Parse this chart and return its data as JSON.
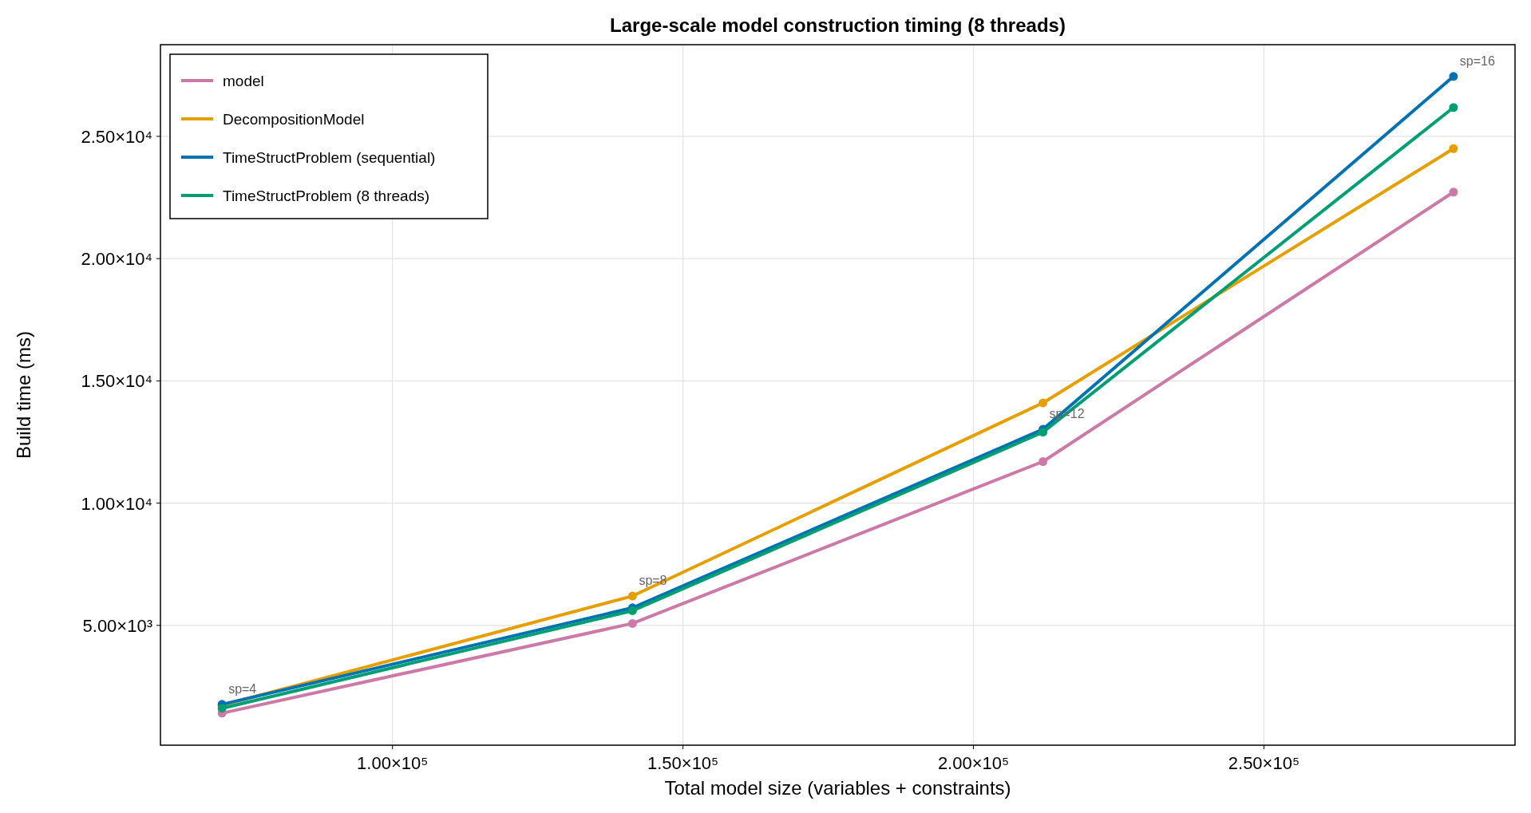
{
  "chart_data": {
    "type": "line",
    "title": "Large-scale model construction timing  (8 threads)",
    "xlabel": "Total model size  (variables + constraints)",
    "ylabel": "Build time (ms)",
    "x": [
      70656,
      141312,
      211968,
      282624
    ],
    "series": [
      {
        "name": "model",
        "color": "#cc79a7",
        "values": [
          1410,
          5080,
          11700,
          22720
        ]
      },
      {
        "name": "DecompositionModel",
        "color": "#e69f00",
        "values": [
          1730,
          6200,
          14100,
          24500
        ]
      },
      {
        "name": "TimeStructProblem (sequential)",
        "color": "#0072b2",
        "values": [
          1770,
          5720,
          13020,
          27450
        ]
      },
      {
        "name": "TimeStructProblem (8 threads)",
        "color": "#009e73",
        "values": [
          1610,
          5600,
          12900,
          26180
        ]
      }
    ],
    "xlim": [
      60058,
      293222
    ],
    "ylim": [
      100,
      28750
    ],
    "xticks": [
      {
        "value": 100000,
        "label": "1.00×10⁵"
      },
      {
        "value": 150000,
        "label": "1.50×10⁵"
      },
      {
        "value": 200000,
        "label": "2.00×10⁵"
      },
      {
        "value": 250000,
        "label": "2.50×10⁵"
      }
    ],
    "yticks": [
      {
        "value": 5000,
        "label": "5.00×10³"
      },
      {
        "value": 10000,
        "label": "1.00×10⁴"
      },
      {
        "value": 15000,
        "label": "1.50×10⁴"
      },
      {
        "value": 20000,
        "label": "2.00×10⁴"
      },
      {
        "value": 25000,
        "label": "2.50×10⁴"
      }
    ],
    "annotations": [
      {
        "text": "sp=4",
        "x": 70656,
        "y": 1770
      },
      {
        "text": "sp=8",
        "x": 141312,
        "y": 6200
      },
      {
        "text": "sp=12",
        "x": 211968,
        "y": 13020
      },
      {
        "text": "sp=16",
        "x": 282624,
        "y": 27450
      }
    ],
    "grid": true,
    "legend": "top left",
    "marker": "circle",
    "line_style": "solid"
  }
}
